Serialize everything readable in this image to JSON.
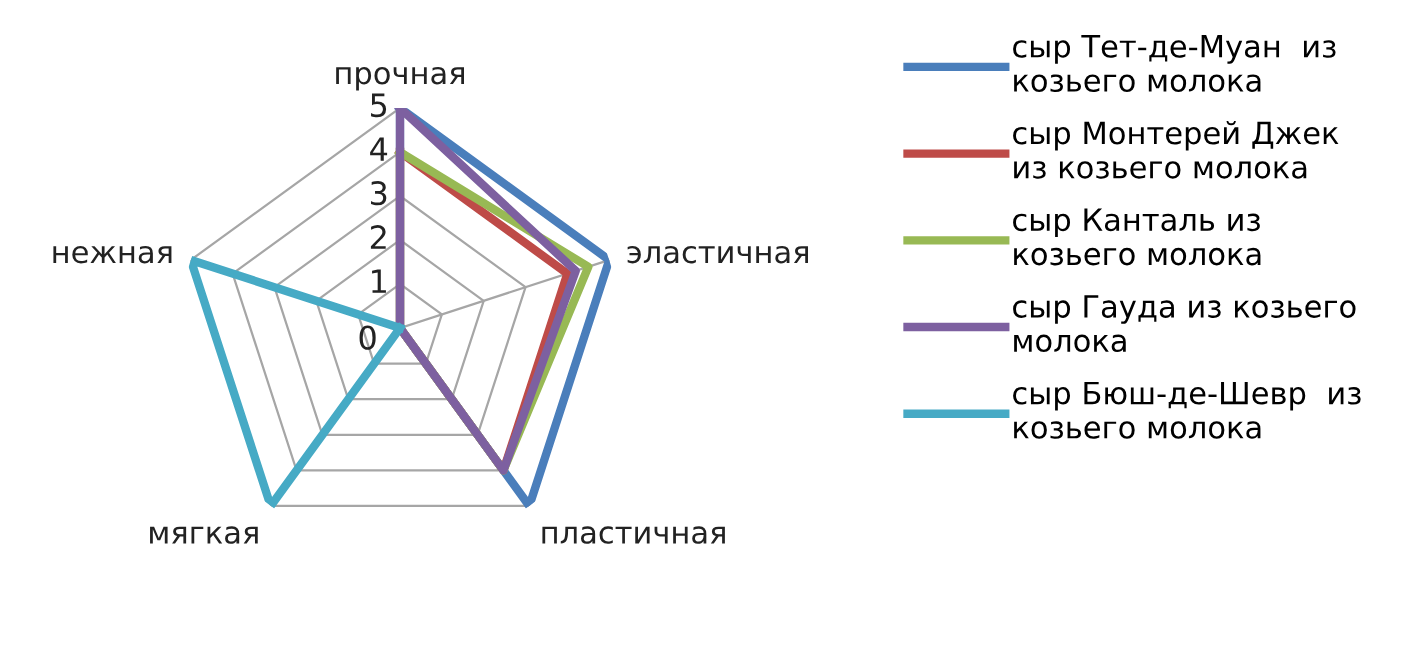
{
  "chart_data": {
    "type": "radar",
    "categories": [
      "прочная",
      "эластичная",
      "пластичная",
      "мягкая",
      "нежная"
    ],
    "ylim": [
      0,
      5
    ],
    "yticks": [
      0,
      1,
      2,
      3,
      4,
      5
    ],
    "grid": true,
    "legend": "right",
    "marker": "none",
    "line_style": "solid",
    "series": [
      {
        "name": "сыр Тет-де-Муан  из\nкозьего молока",
        "color": "#4a7ebb",
        "values": [
          5,
          5,
          5,
          0,
          0
        ]
      },
      {
        "name": "сыр Монтерей Джек\nиз козьего молока",
        "color": "#be4b48",
        "values": [
          4,
          4,
          4,
          0,
          0
        ]
      },
      {
        "name": "сыр Канталь из\nкозьего молока",
        "color": "#98b954",
        "values": [
          4,
          4.5,
          4,
          0,
          0
        ]
      },
      {
        "name": "сыр Гауда из козьего\nмолока",
        "color": "#7d60a0",
        "values": [
          5,
          4.2,
          4,
          0,
          0
        ]
      },
      {
        "name": "сыр Бюш-де-Шевр  из\nкозьего молока",
        "color": "#46aac5",
        "values": [
          0,
          0,
          0,
          5,
          5
        ]
      }
    ]
  }
}
